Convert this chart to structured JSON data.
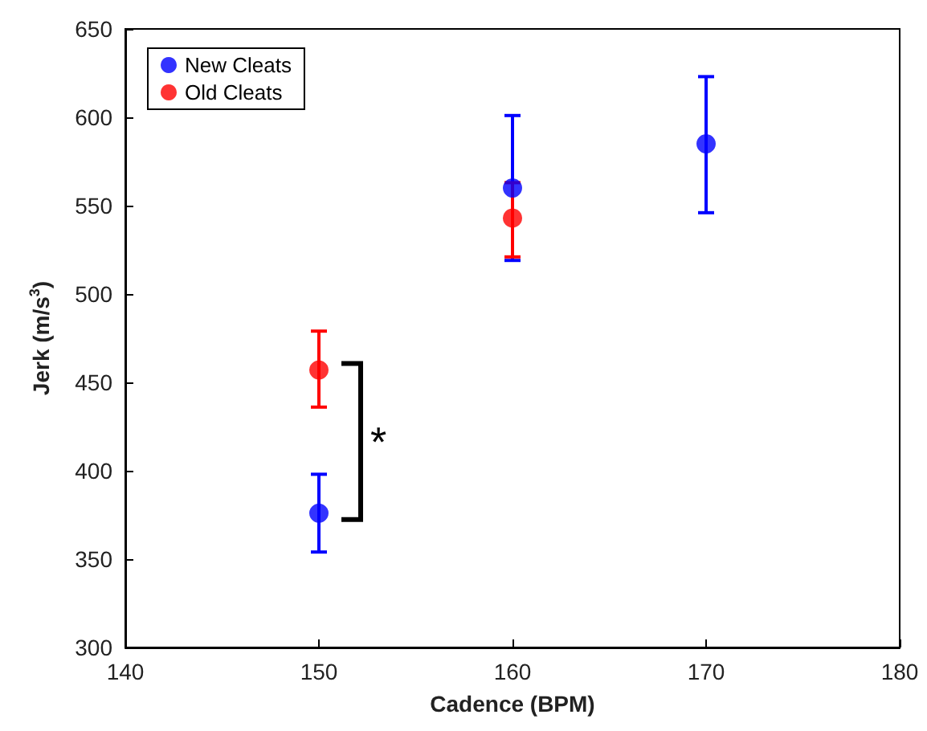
{
  "chart_data": {
    "type": "scatter",
    "xlabel": "Cadence (BPM)",
    "ylabel": "Jerk (m/s$^{3}$)",
    "xlim": [
      140,
      180
    ],
    "xticks": [
      140,
      150,
      160,
      170,
      180
    ],
    "ylim": [
      300,
      650
    ],
    "yticks": [
      300,
      350,
      400,
      450,
      500,
      550,
      600,
      650
    ],
    "series": [
      {
        "name": "New Cleats",
        "color": "#0000ff",
        "x": [
          150,
          160,
          170
        ],
        "values": [
          376,
          560,
          585
        ],
        "errors": [
          [
            354,
            398
          ],
          [
            519,
            601
          ],
          [
            546,
            623
          ]
        ]
      },
      {
        "name": "Old Cleats",
        "color": "#ff0000",
        "x": [
          150,
          160
        ],
        "values": [
          457,
          543
        ],
        "errors": [
          [
            436,
            479
          ],
          [
            521,
            563
          ]
        ]
      }
    ],
    "annotations": [
      "*"
    ],
    "marker": "circle",
    "grid": false,
    "legend": "top left"
  }
}
